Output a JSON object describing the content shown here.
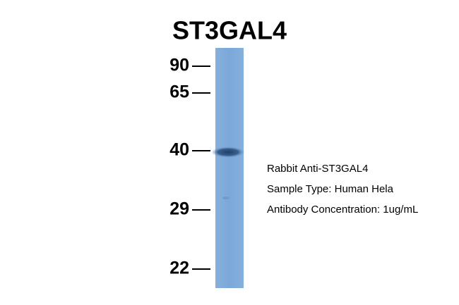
{
  "title": "ST3GAL4",
  "markers": [
    "90",
    "65",
    "40",
    "29",
    "22"
  ],
  "annotations": [
    "Rabbit Anti-ST3GAL4",
    "Sample Type: Human Hela",
    "Antibody Concentration: 1ug/mL"
  ]
}
